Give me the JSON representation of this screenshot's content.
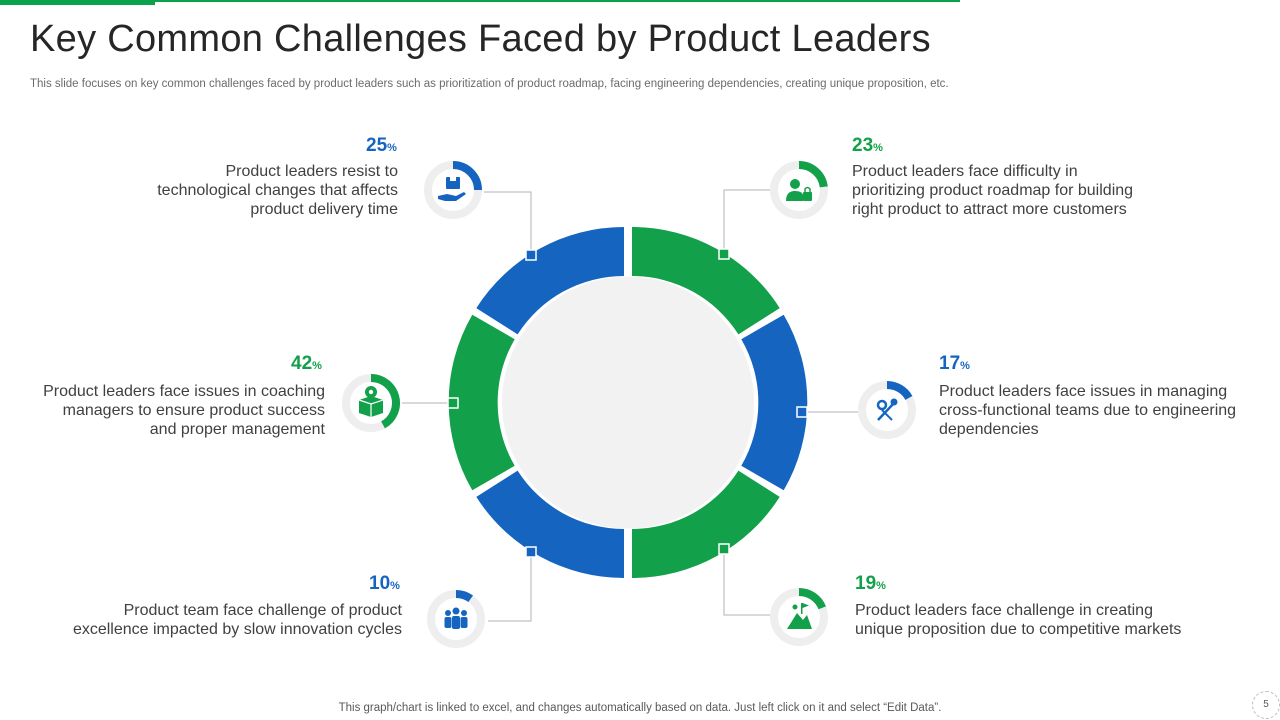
{
  "slide": {
    "title": "Key Common Challenges Faced by Product Leaders",
    "subtitle": "This slide focuses on key common challenges faced by product leaders such as prioritization of product roadmap, facing engineering dependencies, creating unique proposition, etc.",
    "footer": "This graph/chart is linked to excel,  and changes automatically based on data. Just left click on it and select “Edit Data”.",
    "page_number": "5"
  },
  "colors": {
    "blue": "#1565c0",
    "green": "#12a04a",
    "track": "#eeeeee",
    "center": "#f2f2f2",
    "brand_bar": "#0aa24a"
  },
  "challenges": [
    {
      "id": "tech-changes",
      "value": 25,
      "percent_number": "25",
      "percent_symbol": "%",
      "color": "blue",
      "icon": "hand-holding-box-icon",
      "description": "Product leaders resist to technological changes that affects product delivery time"
    },
    {
      "id": "roadmap",
      "value": 23,
      "percent_number": "23",
      "percent_symbol": "%",
      "color": "green",
      "icon": "person-lock-icon",
      "description": "Product leaders face difficulty in prioritizing product roadmap for building right product to attract more customers"
    },
    {
      "id": "coaching",
      "value": 42,
      "percent_number": "42",
      "percent_symbol": "%",
      "color": "green",
      "icon": "box-gear-icon",
      "description": "Product leaders face issues in coaching managers to ensure product success and proper management"
    },
    {
      "id": "cross-functional",
      "value": 17,
      "percent_number": "17",
      "percent_symbol": "%",
      "color": "blue",
      "icon": "tools-gear-icon",
      "description": "Product leaders face issues in managing cross-functional  teams due to engineering dependencies"
    },
    {
      "id": "innovation",
      "value": 10,
      "percent_number": "10",
      "percent_symbol": "%",
      "color": "blue",
      "icon": "team-icon",
      "description": "Product team face challenge  of product excellence impacted by slow innovation cycles"
    },
    {
      "id": "proposition",
      "value": 19,
      "percent_number": "19",
      "percent_symbol": "%",
      "color": "green",
      "icon": "climber-flag-icon",
      "description": "Product leaders face challenge in creating unique proposition due to competitive markets"
    }
  ]
}
